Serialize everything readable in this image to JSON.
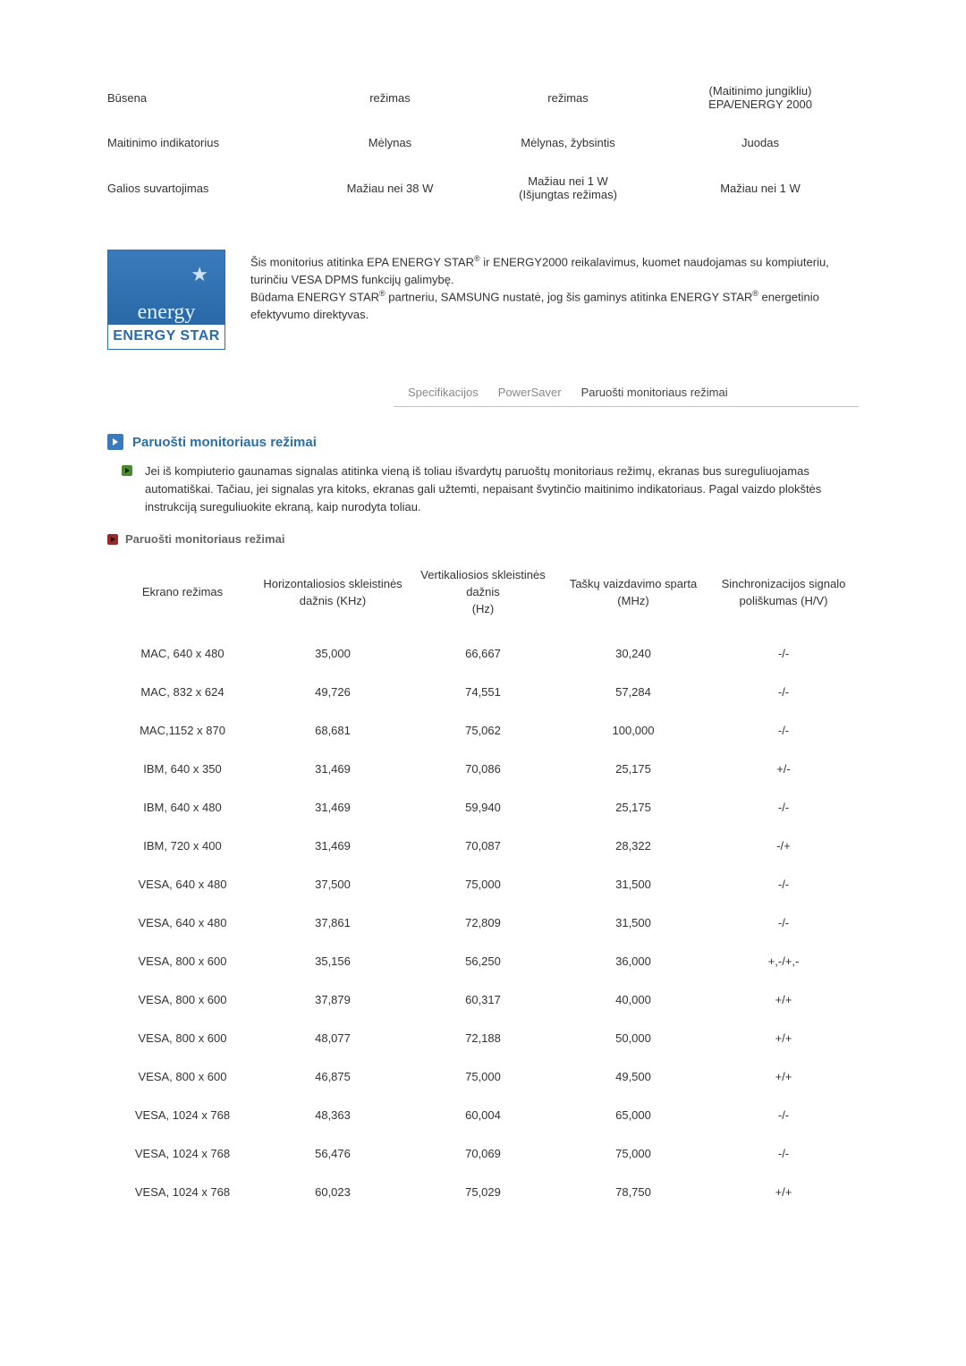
{
  "power_table": {
    "rows": [
      {
        "label": "Būsena",
        "c1": "režimas",
        "c2": "režimas",
        "c3": "(Maitinimo jungikliu)\nEPA/ENERGY 2000"
      },
      {
        "label": "Maitinimo indikatorius",
        "c1": "Mėlynas",
        "c2": "Mėlynas, žybsintis",
        "c3": "Juodas"
      },
      {
        "label": "Galios suvartojimas",
        "c1": "Mažiau nei 38 W",
        "c2": "Mažiau nei 1 W\n(Išjungtas režimas)",
        "c3": "Mažiau nei 1 W"
      }
    ]
  },
  "energy_logo": {
    "script": "energy",
    "bar": "ENERGY STAR"
  },
  "energy_text": {
    "line1a": "Šis monitorius atitinka EPA ENERGY STAR",
    "line1b": " ir ENERGY2000 reikalavimus, kuomet naudojamas su kompiuteriu, turinčiu VESA DPMS funkcijų galimybę.",
    "line2a": "Būdama ENERGY STAR",
    "line2b": " partneriu, SAMSUNG nustatė, jog šis gaminys atitinka ENERGY STAR",
    "line2c": " energetinio efektyvumo direktyvas."
  },
  "tabs": {
    "spec": "Specifikacijos",
    "ps": "PowerSaver",
    "preset": "Paruošti monitoriaus režimai"
  },
  "section_title": "Paruošti monitoriaus režimai",
  "section_para": "Jei iš kompiuterio gaunamas signalas atitinka vieną iš toliau išvardytų paruoštų monitoriaus režimų, ekranas bus sureguliuojamas automatiškai. Tačiau, jei signalas yra kitoks, ekranas gali užtemti, nepaisant švytinčio maitinimo indikatoriaus. Pagal vaizdo plokštės instrukciją sureguliuokite ekraną, kaip nurodyta toliau.",
  "sub_title": "Paruošti monitoriaus režimai",
  "modes": {
    "headers": {
      "mode": "Ekrano režimas",
      "hfreq": "Horizontaliosios skleistinės dažnis (KHz)",
      "vfreq": "Vertikaliosios skleistinės dažnis\n(Hz)",
      "pclk": "Taškų vaizdavimo sparta (MHz)",
      "sync": "Sinchronizacijos signalo poliškumas (H/V)"
    },
    "rows": [
      {
        "mode": "MAC, 640 x 480",
        "h": "35,000",
        "v": "66,667",
        "p": "30,240",
        "s": "-/-"
      },
      {
        "mode": "MAC, 832 x 624",
        "h": "49,726",
        "v": "74,551",
        "p": "57,284",
        "s": "-/-"
      },
      {
        "mode": "MAC,1152 x 870",
        "h": "68,681",
        "v": "75,062",
        "p": "100,000",
        "s": "-/-"
      },
      {
        "mode": "IBM, 640 x 350",
        "h": "31,469",
        "v": "70,086",
        "p": "25,175",
        "s": "+/-"
      },
      {
        "mode": "IBM, 640 x 480",
        "h": "31,469",
        "v": "59,940",
        "p": "25,175",
        "s": "-/-"
      },
      {
        "mode": "IBM, 720 x 400",
        "h": "31,469",
        "v": "70,087",
        "p": "28,322",
        "s": "-/+"
      },
      {
        "mode": "VESA, 640 x 480",
        "h": "37,500",
        "v": "75,000",
        "p": "31,500",
        "s": "-/-"
      },
      {
        "mode": "VESA, 640 x 480",
        "h": "37,861",
        "v": "72,809",
        "p": "31,500",
        "s": "-/-"
      },
      {
        "mode": "VESA, 800 x 600",
        "h": "35,156",
        "v": "56,250",
        "p": "36,000",
        "s": "+,-/+,-"
      },
      {
        "mode": "VESA, 800 x 600",
        "h": "37,879",
        "v": "60,317",
        "p": "40,000",
        "s": "+/+"
      },
      {
        "mode": "VESA, 800 x 600",
        "h": "48,077",
        "v": "72,188",
        "p": "50,000",
        "s": "+/+"
      },
      {
        "mode": "VESA, 800 x 600",
        "h": "46,875",
        "v": "75,000",
        "p": "49,500",
        "s": "+/+"
      },
      {
        "mode": "VESA, 1024 x 768",
        "h": "48,363",
        "v": "60,004",
        "p": "65,000",
        "s": "-/-"
      },
      {
        "mode": "VESA, 1024 x 768",
        "h": "56,476",
        "v": "70,069",
        "p": "75,000",
        "s": "-/-"
      },
      {
        "mode": "VESA, 1024 x 768",
        "h": "60,023",
        "v": "75,029",
        "p": "78,750",
        "s": "+/+"
      }
    ]
  }
}
